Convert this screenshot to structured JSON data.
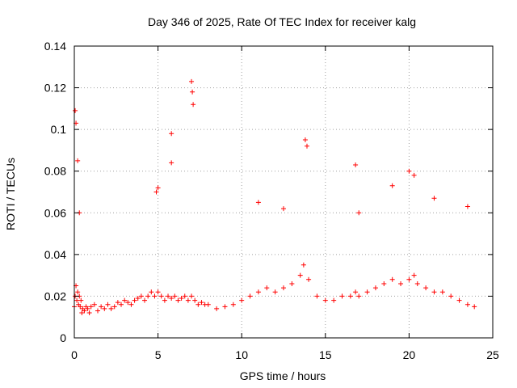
{
  "chart_data": {
    "type": "scatter",
    "title": "Day 346 of 2025, Rate Of TEC Index for receiver kalg",
    "xlabel": "GPS time / hours",
    "ylabel": "ROTI / TECUs",
    "xlim": [
      0,
      25
    ],
    "ylim": [
      0,
      0.14
    ],
    "x_ticks": [
      0,
      5,
      10,
      15,
      20,
      25
    ],
    "y_ticks": [
      0,
      0.02,
      0.04,
      0.06,
      0.08,
      0.1,
      0.12,
      0.14
    ],
    "x_tick_labels": [
      "0",
      "5",
      "10",
      "15",
      "20",
      "25"
    ],
    "y_tick_labels": [
      "0",
      "0.02",
      "0.04",
      "0.06",
      "0.08",
      "0.1",
      "0.12",
      "0.14"
    ],
    "grid": true,
    "marker": "+",
    "color": "#ff0000",
    "series": [
      {
        "values_description_hint": "",
        "x": [
          0.0,
          0.05,
          0.1,
          0.15,
          0.2,
          0.25,
          0.3,
          0.35,
          0.4,
          0.45,
          0.5,
          0.6,
          0.7,
          0.8,
          0.9,
          1.0,
          1.2,
          1.4,
          1.6,
          1.8,
          2.0,
          2.2,
          2.4,
          2.6,
          2.8,
          3.0,
          3.2,
          3.4,
          3.6,
          3.8,
          4.0,
          4.2,
          4.4,
          4.6,
          4.8,
          5.0,
          5.2,
          5.4,
          5.6,
          5.8,
          6.0,
          6.2,
          6.4,
          6.6,
          6.8,
          7.0,
          7.2,
          7.4,
          7.6,
          7.8,
          8.0,
          8.5,
          9.0,
          9.5,
          10.0,
          10.5,
          11.0,
          11.5,
          12.0,
          12.5,
          13.0,
          13.5,
          13.7,
          14.0,
          14.5,
          15.0,
          15.5,
          16.0,
          16.5,
          16.8,
          17.0,
          17.5,
          18.0,
          18.5,
          19.0,
          19.5,
          20.0,
          20.3,
          20.5,
          21.0,
          21.5,
          22.0,
          22.5,
          23.0,
          23.5,
          23.9,
          0.05,
          0.1,
          0.2,
          5.8,
          5.8,
          7.0,
          7.05,
          7.1,
          13.8,
          13.9,
          16.8,
          20.0,
          20.3,
          0.3,
          4.9,
          5.0,
          11.0,
          12.5,
          17.0,
          19.0,
          21.5,
          23.5
        ],
        "y": [
          0.015,
          0.02,
          0.025,
          0.018,
          0.022,
          0.016,
          0.02,
          0.015,
          0.018,
          0.012,
          0.014,
          0.013,
          0.015,
          0.014,
          0.012,
          0.015,
          0.016,
          0.013,
          0.015,
          0.014,
          0.016,
          0.014,
          0.015,
          0.017,
          0.016,
          0.018,
          0.017,
          0.016,
          0.018,
          0.019,
          0.02,
          0.018,
          0.02,
          0.022,
          0.02,
          0.022,
          0.02,
          0.018,
          0.02,
          0.019,
          0.02,
          0.018,
          0.019,
          0.02,
          0.018,
          0.02,
          0.018,
          0.016,
          0.017,
          0.016,
          0.016,
          0.014,
          0.015,
          0.016,
          0.018,
          0.02,
          0.022,
          0.024,
          0.022,
          0.024,
          0.026,
          0.03,
          0.035,
          0.028,
          0.02,
          0.018,
          0.018,
          0.02,
          0.02,
          0.022,
          0.02,
          0.022,
          0.024,
          0.026,
          0.028,
          0.026,
          0.028,
          0.03,
          0.026,
          0.024,
          0.022,
          0.022,
          0.02,
          0.018,
          0.016,
          0.015,
          0.109,
          0.103,
          0.085,
          0.098,
          0.084,
          0.123,
          0.118,
          0.112,
          0.095,
          0.092,
          0.083,
          0.08,
          0.078,
          0.06,
          0.07,
          0.072,
          0.065,
          0.062,
          0.06,
          0.073,
          0.067,
          0.063
        ]
      }
    ]
  }
}
